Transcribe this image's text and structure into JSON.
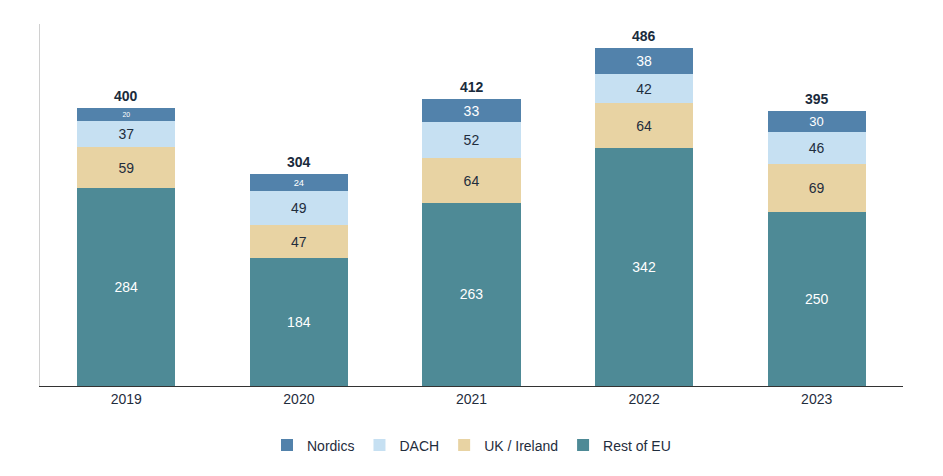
{
  "chart_data": {
    "type": "bar",
    "stacked": true,
    "data_labels": true,
    "tick_labels": "x",
    "grid": false,
    "legend": "bottom",
    "categories": [
      "2019",
      "2020",
      "2021",
      "2022",
      "2023"
    ],
    "ylim": [
      0,
      520
    ],
    "series": [
      {
        "name": "Rest of EU",
        "color": "#4e8a96",
        "values": [
          284,
          184,
          263,
          342,
          250
        ]
      },
      {
        "name": "UK / Ireland",
        "color": "#e8d3a3",
        "values": [
          59,
          47,
          64,
          64,
          69
        ]
      },
      {
        "name": "DACH",
        "color": "#c6e0f2",
        "values": [
          37,
          49,
          52,
          42,
          46
        ]
      },
      {
        "name": "Nordics",
        "color": "#5282ab",
        "values": [
          20,
          24,
          33,
          38,
          30
        ]
      }
    ],
    "totals": [
      400,
      304,
      412,
      486,
      395
    ]
  }
}
